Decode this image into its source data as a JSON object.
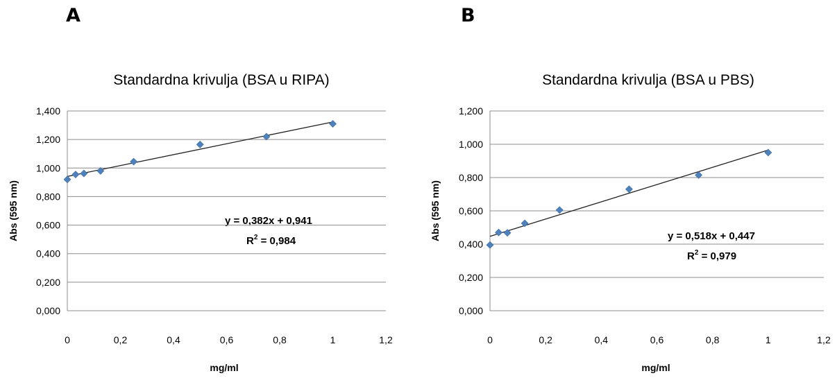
{
  "chart_data": [
    {
      "type": "scatter",
      "panel_label": "A",
      "title": "Standardna krivulja (BSA u RIPA)",
      "xlabel": "mg/ml",
      "ylabel": "Abs (595 nm)",
      "xlim": [
        0,
        1.2
      ],
      "ylim": [
        0,
        1.4
      ],
      "x_ticks": [
        "0",
        "0,2",
        "0,4",
        "0,6",
        "0,8",
        "1",
        "1,2"
      ],
      "y_ticks": [
        "0,000",
        "0,200",
        "0,400",
        "0,600",
        "0,800",
        "1,000",
        "1,200",
        "1,400"
      ],
      "grid": "horizontal",
      "marker_color": "#4f81bd",
      "points": [
        {
          "x": 0,
          "y": 0.92
        },
        {
          "x": 0.03125,
          "y": 0.955
        },
        {
          "x": 0.0625,
          "y": 0.962
        },
        {
          "x": 0.125,
          "y": 0.98
        },
        {
          "x": 0.25,
          "y": 1.045
        },
        {
          "x": 0.5,
          "y": 1.165
        },
        {
          "x": 0.75,
          "y": 1.22
        },
        {
          "x": 1,
          "y": 1.31
        }
      ],
      "trendline": {
        "slope": 0.382,
        "intercept": 0.941,
        "x_range": [
          0,
          1
        ]
      },
      "equation": "y = 0,382x + 0,941",
      "r2_prefix": "R",
      "r2_sup": "2",
      "r2_value": " = 0,984"
    },
    {
      "type": "scatter",
      "panel_label": "B",
      "title": "Standardna krivulja (BSA u PBS)",
      "xlabel": "mg/ml",
      "ylabel": "Abs (595 nm)",
      "xlim": [
        0,
        1.2
      ],
      "ylim": [
        0,
        1.2
      ],
      "x_ticks": [
        "0",
        "0,2",
        "0,4",
        "0,6",
        "0,8",
        "1",
        "1,2"
      ],
      "y_ticks": [
        "0,000",
        "0,200",
        "0,400",
        "0,600",
        "0,800",
        "1,000",
        "1,200"
      ],
      "grid": "horizontal",
      "marker_color": "#4f81bd",
      "points": [
        {
          "x": 0,
          "y": 0.395
        },
        {
          "x": 0.03125,
          "y": 0.47
        },
        {
          "x": 0.0625,
          "y": 0.468
        },
        {
          "x": 0.125,
          "y": 0.525
        },
        {
          "x": 0.25,
          "y": 0.605
        },
        {
          "x": 0.5,
          "y": 0.73
        },
        {
          "x": 0.75,
          "y": 0.815
        },
        {
          "x": 1,
          "y": 0.95
        }
      ],
      "trendline": {
        "slope": 0.518,
        "intercept": 0.447,
        "x_range": [
          0,
          1
        ]
      },
      "equation": "y = 0,518x + 0,447",
      "r2_prefix": "R",
      "r2_sup": "2",
      "r2_value": " = 0,979"
    }
  ]
}
